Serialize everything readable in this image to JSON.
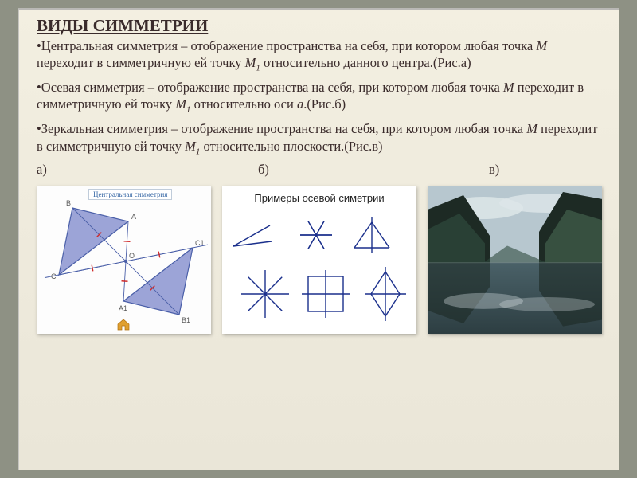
{
  "title": "ВИДЫ СИММЕТРИИ",
  "paragraphs": {
    "p1a": "•Центральная симметрия – отображение пространства на себя, при котором любая точка ",
    "p1m": "M",
    "p1b": " переходит в симметричную ей точку ",
    "p1m1": "M",
    "p1sub": "1",
    "p1c": " относительно данного центра.(Рис.а)",
    "p2a": "•Осевая симметрия – отображение пространства на себя, при котором любая точка ",
    "p2m": "M",
    "p2b": " переходит в симметричную ей точку ",
    "p2m1": "M",
    "p2sub": "1",
    "p2c": " относительно оси ",
    "p2a_i": "a",
    "p2d": ".(Рис.б)",
    "p3a": "•Зеркальная симметрия – отображение пространства на себя, при котором любая точка ",
    "p3m": "M",
    "p3b": " переходит в симметричную ей точку ",
    "p3m1": "M",
    "p3sub": "1",
    "p3c": " относительно плоскости.(Рис.в)"
  },
  "labels": {
    "a": "а)",
    "b": "б)",
    "c": "в)"
  },
  "figA": {
    "title": "Центральная симметрия",
    "stroke": "#4a5fa8",
    "fill": "#7b86c9",
    "tick": "#cf2a2a",
    "points": {
      "B": "B",
      "A": "A",
      "O": "O",
      "C": "C",
      "A1": "A1",
      "B1": "B1",
      "C1": "C1"
    }
  },
  "figB": {
    "title": "Примеры осевой симетрии",
    "stroke": "#1a2f8c",
    "strokeWidth": 1.4
  },
  "figC": {
    "sky": "#b7c7cf",
    "cloud": "#dde6e8",
    "water": "#4a6168",
    "water2": "#2d3e42",
    "mtnDark": "#1d2a24",
    "mtnMid": "#2f4a3d",
    "mtnLight": "#4a6a53"
  }
}
